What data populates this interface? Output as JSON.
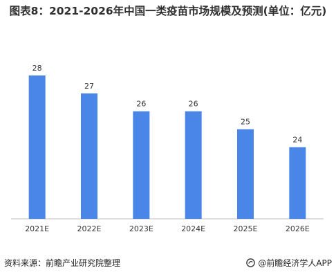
{
  "title": "图表8：2021-2026年中国一类疫苗市场规模及预测(单位：亿元)",
  "source": "资料来源：前瞻产业研究院整理",
  "brand": "@前瞻经济学人APP",
  "colors": {
    "bar": "#4a86e8",
    "text": "#333333",
    "axis": "#bfbfbf"
  },
  "chart_data": {
    "type": "bar",
    "title": "图表8：2021-2026年中国一类疫苗市场规模及预测(单位：亿元)",
    "categories": [
      "2021E",
      "2022E",
      "2023E",
      "2024E",
      "2025E",
      "2026E"
    ],
    "values": [
      28,
      27,
      26,
      26,
      25,
      24
    ],
    "data_labels": [
      "28",
      "27",
      "26",
      "26",
      "25",
      "24"
    ],
    "ylim": [
      20,
      28.5
    ],
    "grid": false,
    "legend": "none"
  }
}
